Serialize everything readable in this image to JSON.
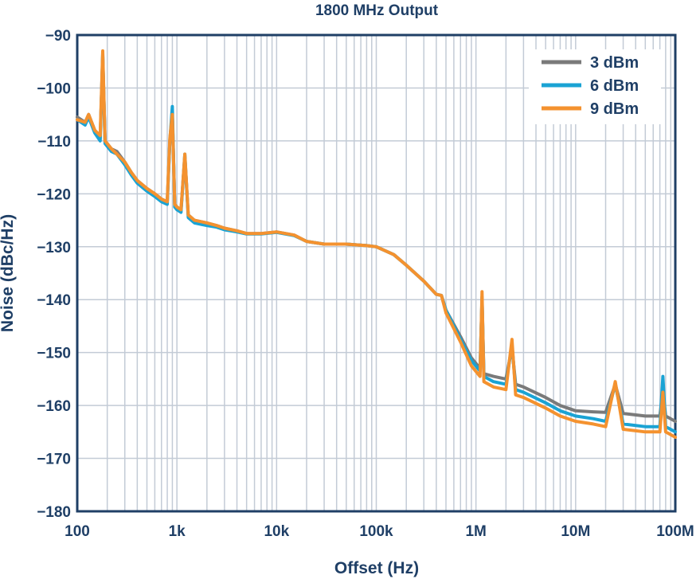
{
  "chart_data": {
    "type": "line",
    "title": "1800 MHz Output",
    "xlabel": "Offset (Hz)",
    "ylabel": "Noise (dBc/Hz)",
    "xscale": "log",
    "xlim": [
      100,
      100000000
    ],
    "ylim": [
      -180,
      -90
    ],
    "grid": true,
    "legend_position": "top-right",
    "x_ticks": [
      {
        "value": 100,
        "label": "100"
      },
      {
        "value": 1000,
        "label": "1k"
      },
      {
        "value": 10000,
        "label": "10k"
      },
      {
        "value": 100000,
        "label": "100k"
      },
      {
        "value": 1000000,
        "label": "1M"
      },
      {
        "value": 10000000,
        "label": "10M"
      },
      {
        "value": 100000000,
        "label": "100M"
      }
    ],
    "y_ticks": [
      {
        "value": -90,
        "label": "−90"
      },
      {
        "value": -100,
        "label": "−100"
      },
      {
        "value": -110,
        "label": "−110"
      },
      {
        "value": -120,
        "label": "−120"
      },
      {
        "value": -130,
        "label": "−130"
      },
      {
        "value": -140,
        "label": "−140"
      },
      {
        "value": -150,
        "label": "−150"
      },
      {
        "value": -160,
        "label": "−160"
      },
      {
        "value": -170,
        "label": "−170"
      },
      {
        "value": -180,
        "label": "−180"
      }
    ],
    "series": [
      {
        "name": "3 dBm",
        "color": "#7a7a7a",
        "points": [
          [
            100,
            -105.5
          ],
          [
            120,
            -106.5
          ],
          [
            130,
            -105
          ],
          [
            150,
            -108
          ],
          [
            170,
            -109.5
          ],
          [
            180,
            -94
          ],
          [
            190,
            -110
          ],
          [
            220,
            -111.5
          ],
          [
            250,
            -112
          ],
          [
            300,
            -114
          ],
          [
            350,
            -116
          ],
          [
            400,
            -117.5
          ],
          [
            500,
            -119
          ],
          [
            600,
            -120
          ],
          [
            700,
            -121
          ],
          [
            800,
            -121.5
          ],
          [
            850,
            -110
          ],
          [
            900,
            -105
          ],
          [
            950,
            -122
          ],
          [
            1000,
            -122.5
          ],
          [
            1100,
            -123
          ],
          [
            1200,
            -113
          ],
          [
            1300,
            -124
          ],
          [
            1500,
            -125
          ],
          [
            2000,
            -125.5
          ],
          [
            2500,
            -126
          ],
          [
            3000,
            -126.5
          ],
          [
            4000,
            -127
          ],
          [
            5000,
            -127.5
          ],
          [
            7000,
            -127.5
          ],
          [
            10000,
            -127.2
          ],
          [
            15000,
            -127.8
          ],
          [
            20000,
            -129
          ],
          [
            30000,
            -129.5
          ],
          [
            50000,
            -129.5
          ],
          [
            80000,
            -129.8
          ],
          [
            100000,
            -130
          ],
          [
            150000,
            -131.5
          ],
          [
            200000,
            -133.5
          ],
          [
            300000,
            -136.5
          ],
          [
            400000,
            -139
          ],
          [
            450000,
            -139.2
          ],
          [
            500000,
            -142
          ],
          [
            700000,
            -147
          ],
          [
            900000,
            -151
          ],
          [
            1100000,
            -153
          ],
          [
            1150000,
            -140
          ],
          [
            1200000,
            -154
          ],
          [
            1500000,
            -154.5
          ],
          [
            2000000,
            -155
          ],
          [
            2300000,
            -149
          ],
          [
            2500000,
            -156
          ],
          [
            3000000,
            -156.5
          ],
          [
            5000000,
            -158.5
          ],
          [
            7000000,
            -160
          ],
          [
            10000000,
            -161
          ],
          [
            15000000,
            -161.2
          ],
          [
            20000000,
            -161.3
          ],
          [
            25000000,
            -156
          ],
          [
            30000000,
            -161.5
          ],
          [
            50000000,
            -162
          ],
          [
            70000000,
            -162
          ],
          [
            75000000,
            -157
          ],
          [
            80000000,
            -162
          ],
          [
            100000000,
            -163
          ]
        ]
      },
      {
        "name": "6 dBm",
        "color": "#1aa3d4",
        "points": [
          [
            100,
            -106
          ],
          [
            120,
            -107
          ],
          [
            130,
            -105.5
          ],
          [
            150,
            -108.5
          ],
          [
            170,
            -110
          ],
          [
            180,
            -93.5
          ],
          [
            190,
            -110.5
          ],
          [
            220,
            -112
          ],
          [
            250,
            -112.5
          ],
          [
            300,
            -114.5
          ],
          [
            350,
            -116.5
          ],
          [
            400,
            -118
          ],
          [
            500,
            -119.5
          ],
          [
            600,
            -120.5
          ],
          [
            700,
            -121.5
          ],
          [
            800,
            -122
          ],
          [
            850,
            -110
          ],
          [
            900,
            -103.5
          ],
          [
            950,
            -122.5
          ],
          [
            1000,
            -123
          ],
          [
            1100,
            -123.5
          ],
          [
            1200,
            -112.5
          ],
          [
            1300,
            -124.5
          ],
          [
            1500,
            -125.5
          ],
          [
            2000,
            -126
          ],
          [
            2500,
            -126.3
          ],
          [
            3000,
            -126.8
          ],
          [
            4000,
            -127.2
          ],
          [
            5000,
            -127.6
          ],
          [
            7000,
            -127.6
          ],
          [
            10000,
            -127.3
          ],
          [
            15000,
            -127.9
          ],
          [
            20000,
            -129
          ],
          [
            30000,
            -129.5
          ],
          [
            50000,
            -129.5
          ],
          [
            80000,
            -129.8
          ],
          [
            100000,
            -130
          ],
          [
            150000,
            -131.5
          ],
          [
            200000,
            -133.5
          ],
          [
            300000,
            -136.5
          ],
          [
            400000,
            -139
          ],
          [
            450000,
            -139.2
          ],
          [
            500000,
            -142
          ],
          [
            700000,
            -147.5
          ],
          [
            900000,
            -151.5
          ],
          [
            1100000,
            -153.5
          ],
          [
            1150000,
            -139.5
          ],
          [
            1200000,
            -154.5
          ],
          [
            1500000,
            -155.5
          ],
          [
            2000000,
            -156
          ],
          [
            2300000,
            -148.5
          ],
          [
            2500000,
            -157
          ],
          [
            3000000,
            -157.5
          ],
          [
            5000000,
            -159.5
          ],
          [
            7000000,
            -161
          ],
          [
            10000000,
            -162
          ],
          [
            15000000,
            -162.5
          ],
          [
            20000000,
            -163
          ],
          [
            25000000,
            -156
          ],
          [
            30000000,
            -163.5
          ],
          [
            50000000,
            -164
          ],
          [
            70000000,
            -164
          ],
          [
            75000000,
            -154.5
          ],
          [
            80000000,
            -164
          ],
          [
            100000000,
            -165
          ]
        ]
      },
      {
        "name": "9 dBm",
        "color": "#f4922f",
        "points": [
          [
            100,
            -106
          ],
          [
            120,
            -106.5
          ],
          [
            130,
            -105
          ],
          [
            150,
            -108
          ],
          [
            170,
            -109
          ],
          [
            180,
            -93
          ],
          [
            190,
            -110
          ],
          [
            220,
            -111.5
          ],
          [
            250,
            -112.5
          ],
          [
            300,
            -114
          ],
          [
            350,
            -116
          ],
          [
            400,
            -117.5
          ],
          [
            500,
            -119
          ],
          [
            600,
            -120
          ],
          [
            700,
            -121
          ],
          [
            800,
            -121.5
          ],
          [
            850,
            -109.5
          ],
          [
            900,
            -105
          ],
          [
            950,
            -122
          ],
          [
            1000,
            -122.5
          ],
          [
            1100,
            -123
          ],
          [
            1200,
            -112.5
          ],
          [
            1300,
            -124
          ],
          [
            1500,
            -125
          ],
          [
            2000,
            -125.5
          ],
          [
            2500,
            -126
          ],
          [
            3000,
            -126.5
          ],
          [
            4000,
            -127
          ],
          [
            5000,
            -127.5
          ],
          [
            7000,
            -127.5
          ],
          [
            10000,
            -127.2
          ],
          [
            15000,
            -127.8
          ],
          [
            20000,
            -129
          ],
          [
            30000,
            -129.5
          ],
          [
            50000,
            -129.5
          ],
          [
            80000,
            -129.8
          ],
          [
            100000,
            -130
          ],
          [
            150000,
            -131.5
          ],
          [
            200000,
            -133.5
          ],
          [
            300000,
            -136.5
          ],
          [
            400000,
            -139
          ],
          [
            450000,
            -139.2
          ],
          [
            500000,
            -142.5
          ],
          [
            700000,
            -148
          ],
          [
            900000,
            -152.5
          ],
          [
            1100000,
            -154.5
          ],
          [
            1150000,
            -138.5
          ],
          [
            1200000,
            -155.5
          ],
          [
            1500000,
            -156.5
          ],
          [
            2000000,
            -157
          ],
          [
            2300000,
            -147.5
          ],
          [
            2500000,
            -158
          ],
          [
            3000000,
            -158.5
          ],
          [
            5000000,
            -160.5
          ],
          [
            7000000,
            -162
          ],
          [
            10000000,
            -163
          ],
          [
            15000000,
            -163.5
          ],
          [
            20000000,
            -164
          ],
          [
            25000000,
            -155.5
          ],
          [
            30000000,
            -164.5
          ],
          [
            50000000,
            -165
          ],
          [
            70000000,
            -165
          ],
          [
            75000000,
            -157.5
          ],
          [
            80000000,
            -165
          ],
          [
            100000000,
            -166
          ]
        ]
      }
    ]
  }
}
